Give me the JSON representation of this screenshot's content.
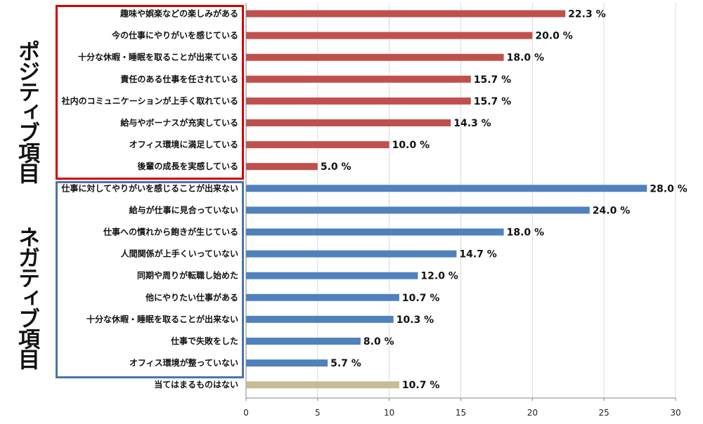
{
  "groups": {
    "positive_label": "ポジティブ項目",
    "negative_label": "ネガティブ項目"
  },
  "colors": {
    "positive": "#c0504d",
    "negative": "#4f81bd",
    "neutral": "#c4bd97",
    "grid": "#d9d9d9",
    "axis": "#868686",
    "positive_box": "#d40000",
    "negative_box": "#4a75a8"
  },
  "chart_data": {
    "type": "bar",
    "orientation": "horizontal",
    "title": "",
    "xlabel": "",
    "ylabel": "",
    "xlim": [
      0,
      30
    ],
    "x_ticks": [
      0,
      5,
      10,
      15,
      20,
      25,
      30
    ],
    "grid": true,
    "value_suffix": " %",
    "categories": [
      "趣味や娯楽などの楽しみがある",
      "今の仕事にやりがいを感じている",
      "十分な休暇・睡眠を取ることが出来ている",
      "責任のある仕事を任されている",
      "社内のコミュニケーションが上手く取れている",
      "給与やボーナスが充実している",
      "オフィス環境に満足している",
      "後輩の成長を実感している",
      "仕事に対してやりがいを感じることが出来ない",
      "給与が仕事に見合っていない",
      "仕事への慣れから飽きが生じている",
      "人間関係が上手くいっていない",
      "同期や周りが転職し始めた",
      "他にやりたい仕事がある",
      "十分な休暇・睡眠を取ることが出来ない",
      "仕事で失敗をした",
      "オフィス環境が整っていない",
      "当てはまるものはない"
    ],
    "values": [
      22.3,
      20.0,
      18.0,
      15.7,
      15.7,
      14.3,
      10.0,
      5.0,
      28.0,
      24.0,
      18.0,
      14.7,
      12.0,
      10.7,
      10.3,
      8.0,
      5.7,
      10.7
    ],
    "value_labels": [
      "22.3 %",
      "20.0 %",
      "18.0 %",
      "15.7 %",
      "15.7 %",
      "14.3 %",
      "10.0 %",
      "5.0 %",
      "28.0 %",
      "24.0 %",
      "18.0 %",
      "14.7 %",
      "12.0 %",
      "10.7 %",
      "10.3 %",
      "8.0 %",
      "5.7 %",
      "10.7 %"
    ],
    "groups": [
      "positive",
      "positive",
      "positive",
      "positive",
      "positive",
      "positive",
      "positive",
      "positive",
      "negative",
      "negative",
      "negative",
      "negative",
      "negative",
      "negative",
      "negative",
      "negative",
      "negative",
      "neutral"
    ]
  }
}
